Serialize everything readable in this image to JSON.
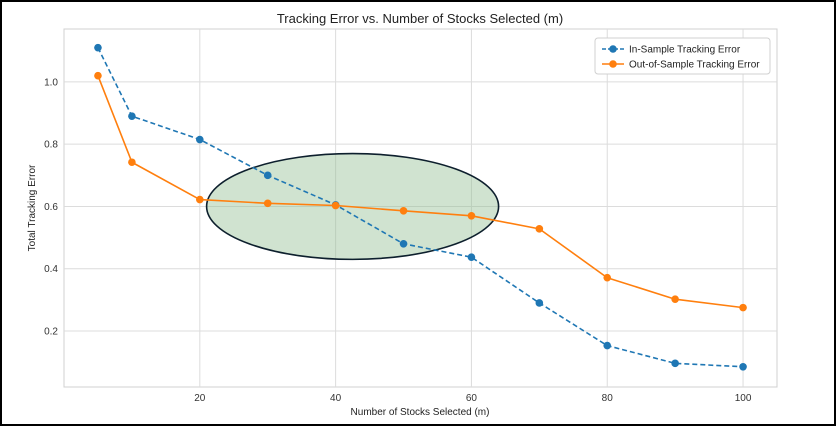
{
  "chart_data": {
    "type": "line",
    "title": "Tracking Error vs. Number of Stocks Selected (m)",
    "xlabel": "Number of Stocks Selected (m)",
    "ylabel": "Total Tracking Error",
    "xlim": [
      0,
      105
    ],
    "ylim": [
      0.02,
      1.17
    ],
    "xticks": [
      20,
      40,
      60,
      80,
      100
    ],
    "yticks": [
      0.2,
      0.4,
      0.6,
      0.8,
      1.0
    ],
    "xtick_labels": [
      "20",
      "40",
      "60",
      "80",
      "100"
    ],
    "ytick_labels": [
      "0.2",
      "0.4",
      "0.6",
      "0.8",
      "1.0"
    ],
    "grid": true,
    "legend_position": "top-right",
    "x": [
      5,
      10,
      20,
      30,
      40,
      50,
      60,
      70,
      80,
      90,
      100
    ],
    "series": [
      {
        "name": "In-Sample Tracking Error",
        "color": "#1f77b4",
        "linestyle": "dashed",
        "marker": "circle",
        "values": [
          1.11,
          0.89,
          0.815,
          0.7,
          0.605,
          0.48,
          0.437,
          0.29,
          0.153,
          0.096,
          0.085
        ]
      },
      {
        "name": "Out-of-Sample Tracking Error",
        "color": "#ff7f0e",
        "linestyle": "solid",
        "marker": "circle",
        "values": [
          1.02,
          0.742,
          0.622,
          0.61,
          0.603,
          0.586,
          0.57,
          0.528,
          0.371,
          0.302,
          0.275
        ]
      }
    ],
    "annotation": {
      "shape": "ellipse",
      "center": [
        42.5,
        0.6
      ],
      "radius_x": 21.5,
      "radius_y": 0.17,
      "fill": "#8fbc8f",
      "stroke": "#0d1f2d"
    }
  }
}
